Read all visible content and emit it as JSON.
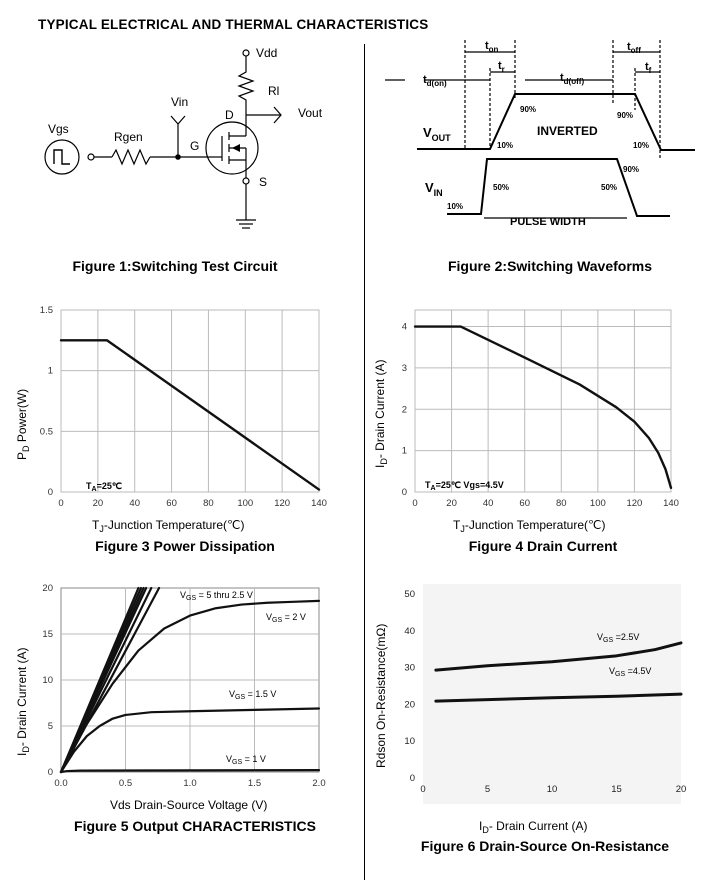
{
  "header": {
    "title": "TYPICAL ELECTRICAL AND THERMAL CHARACTERISTICS"
  },
  "captions": {
    "fig1": "Figure 1:Switching Test Circuit",
    "fig2": "Figure 2:Switching Waveforms",
    "fig3": "Figure 3 Power Dissipation",
    "fig4": "Figure 4 Drain Current",
    "fig5": "Figure 5 Output CHARACTERISTICS",
    "fig6": "Figure 6 Drain-Source On-Resistance"
  },
  "circuit": {
    "vdd": "Vdd",
    "rl": "Rl",
    "vout": "Vout",
    "vin": "Vin",
    "vgs": "Vgs",
    "rgen": "Rgen",
    "g": "G",
    "d": "D",
    "s": "S"
  },
  "waveforms": {
    "ton": "t",
    "ton_sub": "on",
    "tr": "t",
    "tr_sub": "r",
    "tdon": "t",
    "tdon_sub": "d(on)",
    "tdoff": "t",
    "tdoff_sub": "d(off)",
    "toff": "t",
    "toff_sub": "off",
    "tf": "t",
    "tf_sub": "f",
    "vout": "V",
    "vout_sub": "OUT",
    "vin": "V",
    "vin_sub": "IN",
    "inverted": "INVERTED",
    "pulse_width": "PULSE WIDTH",
    "p90a": "90%",
    "p90b": "90%",
    "p10a": "10%",
    "p10b": "10%",
    "p90c": "90%",
    "p50a": "50%",
    "p50b": "50%",
    "p10c": "10%"
  },
  "chart_data": [
    {
      "id": "fig3",
      "type": "line",
      "xlabel": "T",
      "xlabel_sub": "J",
      "xlabel_rest": "-Junction Temperature(℃)",
      "ylabel": "P",
      "ylabel_sub": "D",
      "ylabel_rest": "  Power(W)",
      "xlim": [
        0,
        140
      ],
      "ylim": [
        0,
        1.5
      ],
      "xticks": [
        0,
        20,
        40,
        60,
        80,
        100,
        120,
        140
      ],
      "yticks": [
        0,
        0.5,
        1,
        1.5
      ],
      "ytick_labels": [
        "0",
        "0.5",
        "1",
        "1.5"
      ],
      "grid": true,
      "annotation": "T",
      "annotation_sub": "A",
      "annotation_rest": "=25℃",
      "series": [
        {
          "x": [
            0,
            25,
            140
          ],
          "y": [
            1.25,
            1.25,
            0.02
          ]
        }
      ]
    },
    {
      "id": "fig4",
      "type": "line",
      "xlabel": "T",
      "xlabel_sub": "J",
      "xlabel_rest": "-Junction Temperature(℃)",
      "ylabel": "I",
      "ylabel_sub": "D",
      "ylabel_rest": "- Drain Current (A)",
      "xlim": [
        0,
        140
      ],
      "ylim": [
        0,
        4.4
      ],
      "xticks": [
        0,
        20,
        40,
        60,
        80,
        100,
        120,
        140
      ],
      "yticks": [
        0,
        1,
        2,
        3,
        4
      ],
      "ytick_labels": [
        "0",
        "1",
        "2",
        "3",
        "4"
      ],
      "grid": true,
      "annotation": "T",
      "annotation_sub": "A",
      "annotation_rest": "=25℃  Vgs=4.5V",
      "series": [
        {
          "x": [
            0,
            25,
            60,
            90,
            110,
            120,
            128,
            133,
            137,
            140
          ],
          "y": [
            4,
            4,
            3.25,
            2.6,
            2.05,
            1.7,
            1.3,
            0.95,
            0.55,
            0.1
          ]
        }
      ]
    },
    {
      "id": "fig5",
      "type": "line",
      "xlabel": "Vds Drain-Source Voltage (V)",
      "ylabel": "I",
      "ylabel_sub": "D",
      "ylabel_rest": "- Drain Current (A)",
      "xlim": [
        0,
        2.0
      ],
      "ylim": [
        0,
        20
      ],
      "xticks": [
        0,
        0.5,
        1.0,
        1.5,
        2.0
      ],
      "xtick_labels": [
        "0.0",
        "0.5",
        "1.0",
        "1.5",
        "2.0"
      ],
      "yticks": [
        0,
        5,
        10,
        15,
        20
      ],
      "ytick_labels": [
        "0",
        "5",
        "10",
        "15",
        "20"
      ],
      "grid": true,
      "series": [
        {
          "name": "V",
          "name_sub": "GS",
          "name_rest": " = 5 thru 2.5 V",
          "x": [
            0,
            0.6
          ],
          "y": [
            0,
            20
          ]
        },
        {
          "x": [
            0,
            0.62
          ],
          "y": [
            0,
            20
          ]
        },
        {
          "x": [
            0,
            0.64
          ],
          "y": [
            0,
            20
          ]
        },
        {
          "x": [
            0,
            0.66
          ],
          "y": [
            0,
            20
          ]
        },
        {
          "x": [
            0,
            0.7
          ],
          "y": [
            0,
            20
          ]
        },
        {
          "x": [
            0,
            0.76
          ],
          "y": [
            0,
            20
          ]
        },
        {
          "name": "V",
          "name_sub": "GS",
          "name_rest": " = 2 V",
          "x": [
            0,
            0.2,
            0.4,
            0.6,
            0.8,
            1.0,
            1.2,
            1.4,
            1.6,
            1.8,
            2.0
          ],
          "y": [
            0,
            5.2,
            9.6,
            13.2,
            15.6,
            17.0,
            17.8,
            18.2,
            18.4,
            18.5,
            18.6
          ]
        },
        {
          "name": "V",
          "name_sub": "GS",
          "name_rest": " = 1.5 V",
          "x": [
            0,
            0.1,
            0.2,
            0.3,
            0.4,
            0.5,
            0.7,
            1.0,
            1.5,
            2.0
          ],
          "y": [
            0,
            2.2,
            3.9,
            5.0,
            5.8,
            6.2,
            6.5,
            6.6,
            6.75,
            6.9
          ]
        },
        {
          "name": "V",
          "name_sub": "GS",
          "name_rest": " = 1 V",
          "x": [
            0,
            0.05,
            0.15,
            2.0
          ],
          "y": [
            0,
            0.1,
            0.15,
            0.2
          ]
        }
      ]
    },
    {
      "id": "fig6",
      "type": "line",
      "xlabel": "I",
      "xlabel_sub": "D",
      "xlabel_rest": "- Drain Current (A)",
      "ylabel": "Rdson On-Resistance(mΩ)",
      "xlim": [
        0,
        20
      ],
      "ylim": [
        0,
        50
      ],
      "xticks": [
        0,
        5,
        10,
        15,
        20
      ],
      "yticks": [
        0,
        10,
        20,
        30,
        40,
        50
      ],
      "ytick_labels": [
        "0",
        "10",
        "20",
        "30",
        "40",
        "50"
      ],
      "grid": false,
      "series": [
        {
          "name": "V",
          "name_sub": "GS",
          "name_rest": " =2.5V",
          "x": [
            1,
            5,
            10,
            15,
            18,
            20
          ],
          "y": [
            29.3,
            30.5,
            31.6,
            33.2,
            34.9,
            36.7
          ]
        },
        {
          "name": "V",
          "name_sub": "GS",
          "name_rest": " =4.5V",
          "x": [
            1,
            5,
            10,
            15,
            20
          ],
          "y": [
            20.9,
            21.3,
            21.8,
            22.2,
            22.8
          ]
        }
      ]
    }
  ]
}
